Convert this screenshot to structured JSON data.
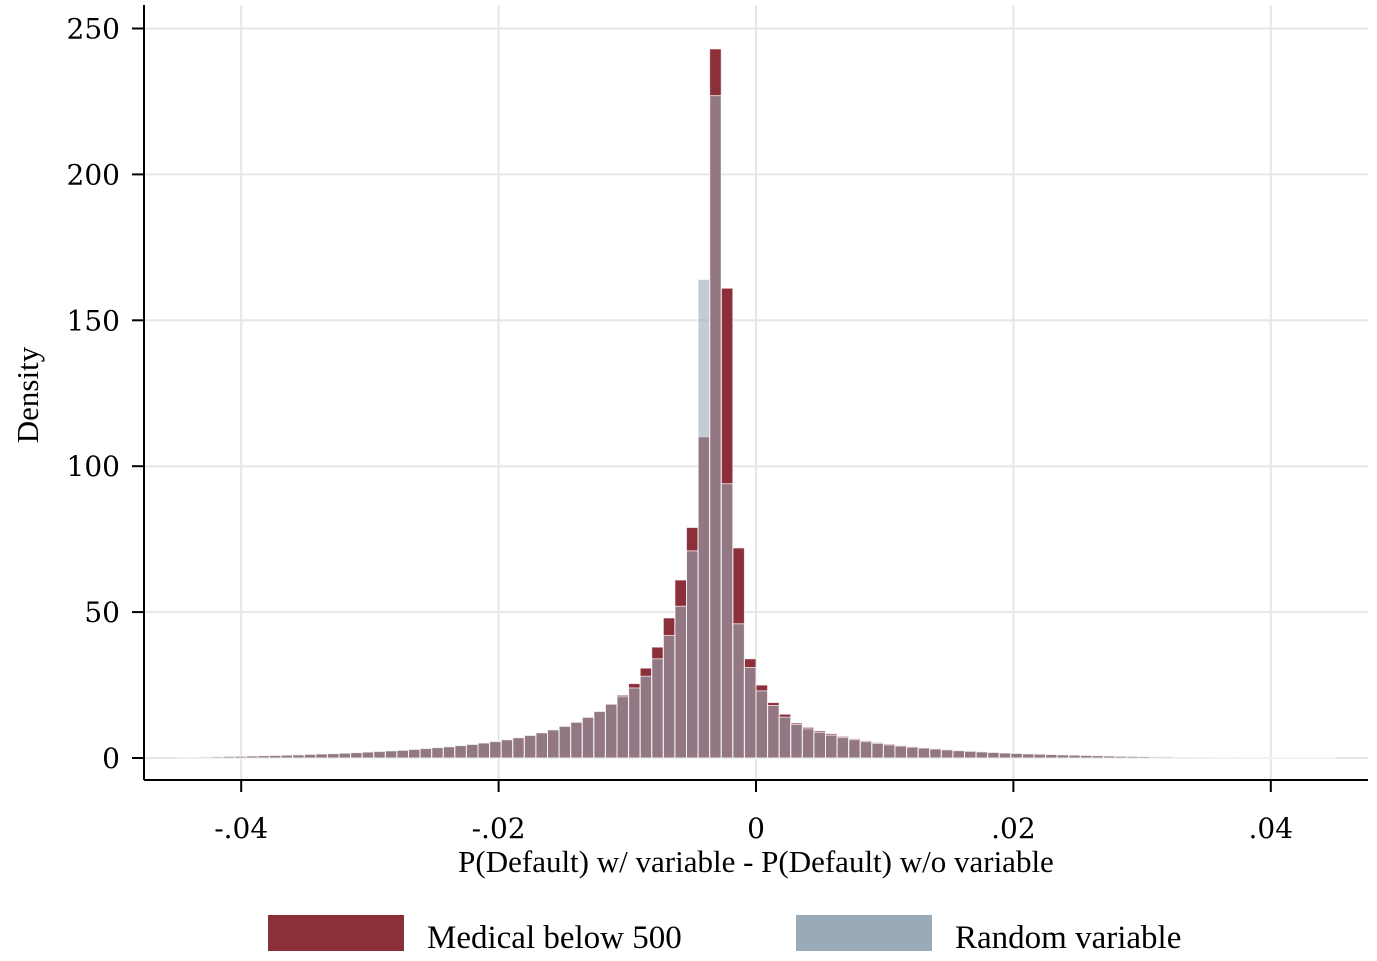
{
  "chart_data": {
    "type": "bar",
    "subtype": "overlaid-histogram",
    "xlabel": "P(Default) w/ variable - P(Default) w/o variable",
    "ylabel": "Density",
    "xlim": [
      -0.0475,
      0.048
    ],
    "ylim": [
      0,
      260
    ],
    "x_ticks": [
      -0.04,
      -0.02,
      0,
      0.02,
      0.04
    ],
    "x_tick_labels": [
      "-.04",
      "-.02",
      "0",
      ".02",
      ".04"
    ],
    "y_ticks": [
      0,
      50,
      100,
      150,
      200,
      250
    ],
    "y_tick_labels": [
      "0",
      "50",
      "100",
      "150",
      "200",
      "250"
    ],
    "grid": true,
    "legend_position": "bottom",
    "bin_width": 0.0009,
    "bin_starts": [
      -0.045,
      -0.0441,
      -0.0432,
      -0.0423,
      -0.0414,
      -0.0405,
      -0.0396,
      -0.0387,
      -0.0378,
      -0.0369,
      -0.036,
      -0.0351,
      -0.0342,
      -0.0333,
      -0.0324,
      -0.0315,
      -0.0306,
      -0.0297,
      -0.0288,
      -0.0279,
      -0.027,
      -0.0261,
      -0.0252,
      -0.0243,
      -0.0234,
      -0.0225,
      -0.0216,
      -0.0207,
      -0.0198,
      -0.0189,
      -0.018,
      -0.0171,
      -0.0162,
      -0.0153,
      -0.0144,
      -0.0135,
      -0.0126,
      -0.0117,
      -0.0108,
      -0.0099,
      -0.009,
      -0.0081,
      -0.0072,
      -0.0063,
      -0.0054,
      -0.0045,
      -0.0036,
      -0.0027,
      -0.0018,
      -0.0009,
      0,
      0.0009,
      0.0018,
      0.0027,
      0.0036,
      0.0045,
      0.0054,
      0.0063,
      0.0072,
      0.0081,
      0.009,
      0.0099,
      0.0108,
      0.0117,
      0.0126,
      0.0135,
      0.0144,
      0.0153,
      0.0162,
      0.0171,
      0.018,
      0.0189,
      0.0198,
      0.0207,
      0.0216,
      0.0225,
      0.0234,
      0.0243,
      0.0252,
      0.0261,
      0.027,
      0.0279,
      0.0288,
      0.0297,
      0.0306,
      0.0315,
      0.0324,
      0.0333,
      0.0342,
      0.0351,
      0.036,
      0.0369,
      0.0378,
      0.0387,
      0.0396,
      0.0405,
      0.0414,
      0.0423,
      0.0432,
      0.0441
    ],
    "series": [
      {
        "name": "Medical below 500",
        "color": "#8b2f39",
        "values": [
          0.2,
          0.3,
          0.3,
          0.4,
          0.5,
          0.6,
          0.7,
          0.8,
          0.9,
          1.0,
          1.1,
          1.2,
          1.4,
          1.5,
          1.6,
          1.8,
          2.0,
          2.2,
          2.4,
          2.6,
          2.9,
          3.2,
          3.5,
          3.8,
          4.2,
          4.6,
          5.1,
          5.6,
          6.2,
          6.9,
          7.7,
          8.6,
          9.6,
          10.8,
          12.2,
          13.9,
          15.9,
          18.4,
          21.5,
          25.5,
          30.8,
          38.0,
          48.0,
          61.0,
          79.0,
          110.0,
          243.0,
          161.0,
          72.0,
          34.0,
          25.0,
          19.0,
          15.0,
          12.0,
          10.5,
          9.3,
          8.3,
          7.4,
          6.6,
          5.9,
          5.3,
          4.8,
          4.3,
          3.9,
          3.5,
          3.2,
          2.9,
          2.6,
          2.4,
          2.2,
          2.0,
          1.8,
          1.6,
          1.5,
          1.4,
          1.2,
          1.1,
          1.0,
          0.9,
          0.8,
          0.7,
          0.6,
          0.5,
          0.5,
          0.4,
          0.4,
          0.3,
          0.3,
          0.2,
          0.2,
          0.2,
          0.2,
          0.1,
          0.1,
          0.1,
          0.1,
          0.1,
          0.1,
          0.1,
          0.1
        ]
      },
      {
        "name": "Random variable",
        "color": "#9aaab6",
        "values": [
          0.3,
          0.3,
          0.4,
          0.5,
          0.6,
          0.6,
          0.7,
          0.8,
          0.9,
          1.0,
          1.1,
          1.3,
          1.4,
          1.5,
          1.7,
          1.9,
          2.1,
          2.3,
          2.5,
          2.7,
          3.0,
          3.3,
          3.6,
          3.9,
          4.3,
          4.7,
          5.2,
          5.7,
          6.3,
          7.0,
          7.8,
          8.7,
          9.7,
          10.9,
          12.3,
          14.0,
          16.0,
          18.5,
          21.0,
          24.0,
          28.0,
          34.0,
          42.0,
          52.0,
          71.0,
          164.0,
          227.0,
          94.0,
          46.0,
          31.0,
          23.0,
          18.0,
          14.0,
          11.5,
          10.0,
          8.8,
          7.8,
          7.0,
          6.3,
          5.6,
          5.0,
          4.5,
          4.1,
          3.7,
          3.4,
          3.1,
          2.8,
          2.5,
          2.3,
          2.1,
          1.9,
          1.7,
          1.6,
          1.4,
          1.3,
          1.2,
          1.1,
          1.0,
          0.9,
          0.8,
          0.7,
          0.6,
          0.6,
          0.5,
          0.4,
          0.4,
          0.3,
          0.3,
          0.3,
          0.2,
          0.2,
          0.2,
          0.2,
          0.1,
          0.1,
          0.1,
          0.1,
          0.1,
          0.1,
          0.1
        ]
      }
    ]
  }
}
